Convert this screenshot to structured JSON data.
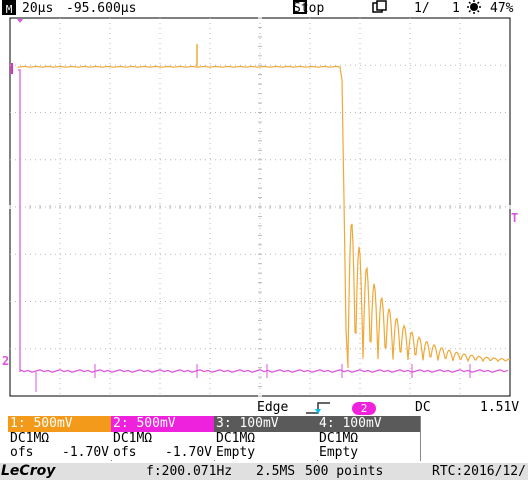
{
  "top_bar": {
    "mode_icon": "M",
    "timebase": "20µs",
    "delay": "-95.600µs",
    "run_state": "Stop",
    "acq_counter_left": "1/",
    "acq_counter_right": "1",
    "battery": "47%",
    "icons": [
      "measure-icon",
      "stop-square-icon",
      "copy-icon",
      "battery-icon"
    ]
  },
  "trigger": {
    "type": "Edge",
    "source": "2",
    "coupling": "DC",
    "level": "1.51V"
  },
  "channels": [
    {
      "label": "1: 500mV",
      "coupling": "DC1MΩ",
      "ofs_label": "ofs",
      "ofs_value": "-1.70V",
      "color": "#f39a1a"
    },
    {
      "label": "2: 500mV",
      "coupling": "DC1MΩ",
      "ofs_label": "ofs",
      "ofs_value": "-1.70V",
      "color": "#ee22dd"
    },
    {
      "label": "3: 100mV",
      "coupling": "DC1MΩ",
      "ofs_label": "Empty",
      "ofs_value": "",
      "color": "#5a5a5a"
    },
    {
      "label": "4: 100mV",
      "coupling": "DC1MΩ",
      "ofs_label": "Empty",
      "ofs_value": "",
      "color": "#5a5a5a"
    }
  ],
  "status_bar": {
    "brand": "LeCroy",
    "frequency": "f:200.071Hz",
    "sample_rate": "2.5MS",
    "points": "500 points",
    "rtc": "RTC:2016/12/"
  },
  "markers": {
    "ch2_ground": "2",
    "trigger_level": "T"
  },
  "colors": {
    "ch1": "#f0a838",
    "ch2": "#dd55dd",
    "grid": "#d0d0d0"
  }
}
